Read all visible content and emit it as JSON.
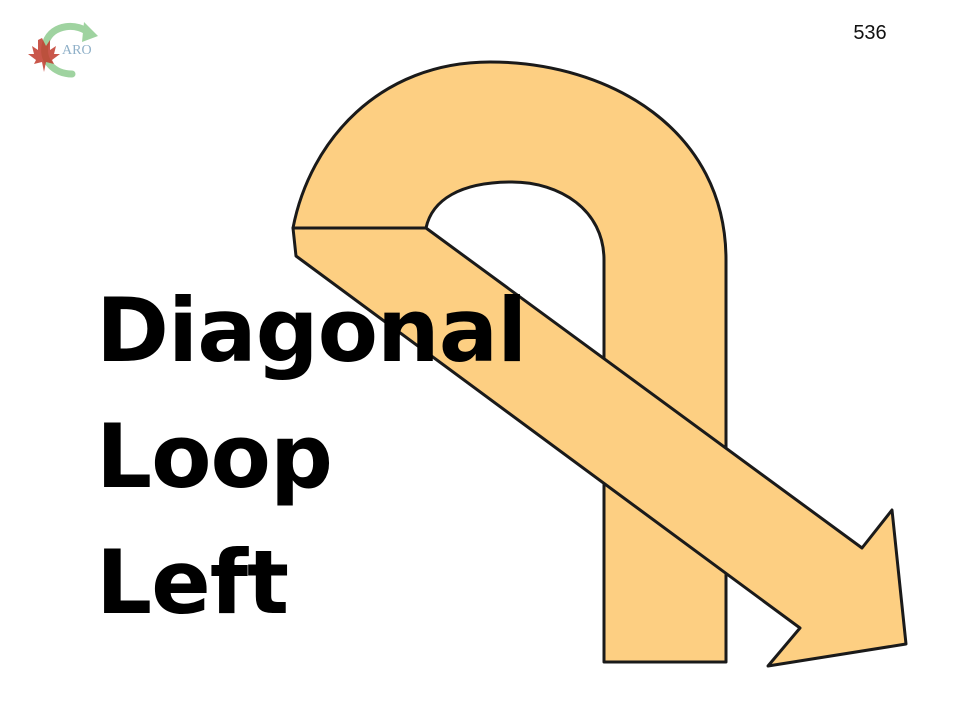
{
  "slide": {
    "page_number": "536",
    "title_lines": [
      "Diagonal",
      "Loop",
      "Left"
    ]
  },
  "logo": {
    "icon": "maple-leaf-arrow-logo-icon",
    "text": "ARO"
  },
  "graphic": {
    "icon": "diagonal-loop-left-arrow-icon",
    "fill_color": "#FDCF82",
    "stroke_color": "#1a1a1a"
  }
}
